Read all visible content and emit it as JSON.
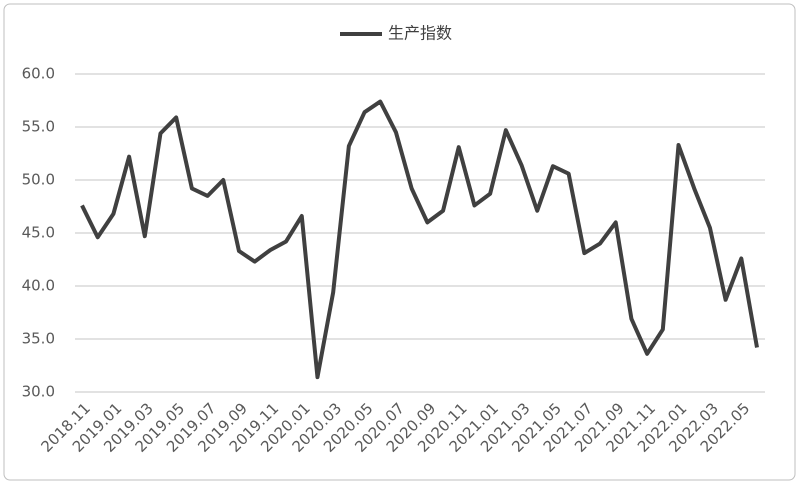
{
  "chart_data": {
    "type": "line",
    "categories": [
      "2018.11",
      null,
      "2019.01",
      null,
      "2019.03",
      null,
      "2019.05",
      null,
      "2019.07",
      null,
      "2019.09",
      null,
      "2019.11",
      null,
      "2020.01",
      null,
      "2020.03",
      null,
      "2020.05",
      null,
      "2020.07",
      null,
      "2020.09",
      null,
      "2020.11",
      null,
      "2021.01",
      null,
      "2021.03",
      null,
      "2021.05",
      null,
      "2021.07",
      null,
      "2021.09",
      null,
      "2021.11",
      null,
      "2022.01",
      null,
      "2022.03",
      null,
      "2022.05",
      null
    ],
    "series": [
      {
        "name": "生产指数",
        "color": "#404040",
        "values": [
          47.6,
          44.6,
          46.8,
          52.2,
          44.7,
          54.4,
          55.9,
          49.2,
          48.5,
          50.0,
          43.3,
          42.3,
          43.4,
          44.2,
          46.6,
          31.4,
          39.4,
          53.2,
          56.4,
          57.4,
          54.5,
          49.2,
          46.0,
          47.1,
          53.1,
          47.6,
          48.7,
          54.7,
          51.4,
          47.1,
          51.3,
          50.6,
          43.1,
          44.0,
          46.0,
          36.9,
          33.6,
          35.9,
          53.3,
          49.2,
          45.5,
          38.7,
          42.6,
          34.2
        ]
      }
    ],
    "ylim": [
      30,
      60
    ],
    "yticks": [
      {
        "value": 30,
        "label": "30.0"
      },
      {
        "value": 35,
        "label": "35.0"
      },
      {
        "value": 40,
        "label": "40.0"
      },
      {
        "value": 45,
        "label": "45.0"
      },
      {
        "value": 50,
        "label": "50.0"
      },
      {
        "value": 55,
        "label": "55.0"
      },
      {
        "value": 60,
        "label": "60.0"
      }
    ],
    "grid": true,
    "legend": "top"
  }
}
